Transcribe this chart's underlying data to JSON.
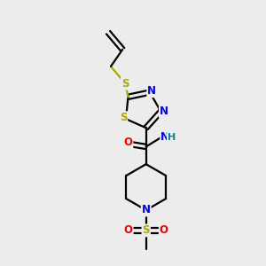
{
  "bg_color": "#ececec",
  "atom_colors": {
    "C": "#000000",
    "H": "#008888",
    "N": "#0000ee",
    "O": "#ee0000",
    "S": "#aaaa00"
  },
  "bond_color": "#000000",
  "line_width": 1.6,
  "font_size": 8.5
}
